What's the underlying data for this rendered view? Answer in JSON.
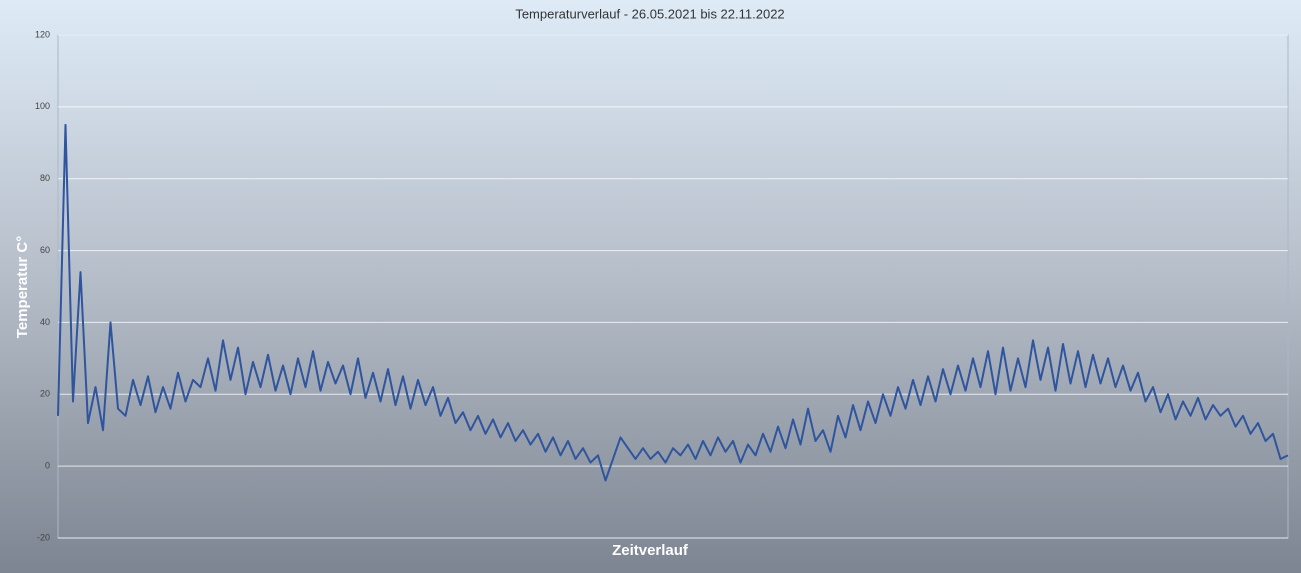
{
  "chart_data": {
    "type": "line",
    "title": "Temperaturverlauf - 26.05.2021 bis 22.11.2022",
    "ylabel": "Temperatur C°",
    "xlabel": "Zeitverlauf",
    "color": "#2f559f",
    "grid": true,
    "ylim": [
      -20,
      120
    ],
    "yticks": [
      -20,
      0,
      20,
      40,
      60,
      80,
      100,
      120
    ],
    "values": [
      14,
      95,
      18,
      54,
      12,
      22,
      10,
      40,
      16,
      14,
      24,
      17,
      25,
      15,
      22,
      16,
      26,
      18,
      24,
      22,
      30,
      21,
      35,
      24,
      33,
      20,
      29,
      22,
      31,
      21,
      28,
      20,
      30,
      22,
      32,
      21,
      29,
      23,
      28,
      20,
      30,
      19,
      26,
      18,
      27,
      17,
      25,
      16,
      24,
      17,
      22,
      14,
      19,
      12,
      15,
      10,
      14,
      9,
      13,
      8,
      12,
      7,
      10,
      6,
      9,
      4,
      8,
      3,
      7,
      2,
      5,
      1,
      3,
      -4,
      2,
      8,
      5,
      2,
      5,
      2,
      4,
      1,
      5,
      3,
      6,
      2,
      7,
      3,
      8,
      4,
      7,
      1,
      6,
      3,
      9,
      4,
      11,
      5,
      13,
      6,
      16,
      7,
      10,
      4,
      14,
      8,
      17,
      10,
      18,
      12,
      20,
      14,
      22,
      16,
      24,
      17,
      25,
      18,
      27,
      20,
      28,
      21,
      30,
      22,
      32,
      20,
      33,
      21,
      30,
      22,
      35,
      24,
      33,
      21,
      34,
      23,
      32,
      22,
      31,
      23,
      30,
      22,
      28,
      21,
      26,
      18,
      22,
      15,
      20,
      13,
      18,
      14,
      19,
      13,
      17,
      14,
      16,
      11,
      14,
      9,
      12,
      7,
      9,
      2,
      3
    ]
  }
}
